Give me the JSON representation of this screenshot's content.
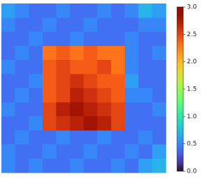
{
  "chart_data": {
    "type": "heatmap",
    "colormap": "turbo",
    "clim": [
      0,
      3
    ],
    "values": [
      [
        0.6,
        0.5,
        0.4,
        0.4,
        0.5,
        0.4,
        0.4,
        0.5,
        0.4,
        0.5,
        0.7,
        0.6
      ],
      [
        0.5,
        0.4,
        0.4,
        0.5,
        0.4,
        0.4,
        0.5,
        0.4,
        0.4,
        0.4,
        0.5,
        0.5
      ],
      [
        0.4,
        0.4,
        0.5,
        0.4,
        0.4,
        0.5,
        0.4,
        0.4,
        0.4,
        0.5,
        0.4,
        0.4
      ],
      [
        0.4,
        0.5,
        0.4,
        2.3,
        2.4,
        2.3,
        2.4,
        2.3,
        2.3,
        0.5,
        0.4,
        0.5
      ],
      [
        0.5,
        0.4,
        0.4,
        2.4,
        2.5,
        2.4,
        2.4,
        2.5,
        2.3,
        0.5,
        0.4,
        0.4
      ],
      [
        0.4,
        0.4,
        0.5,
        2.4,
        2.5,
        2.6,
        2.5,
        2.4,
        2.4,
        0.6,
        0.4,
        0.4
      ],
      [
        0.4,
        0.5,
        0.4,
        2.4,
        2.5,
        2.7,
        2.6,
        2.5,
        2.4,
        0.5,
        0.5,
        0.4
      ],
      [
        0.5,
        0.4,
        0.4,
        2.5,
        2.7,
        2.8,
        2.7,
        2.6,
        2.5,
        0.4,
        0.4,
        0.5
      ],
      [
        0.4,
        0.4,
        0.5,
        2.5,
        2.6,
        2.7,
        2.8,
        2.7,
        2.5,
        0.4,
        0.4,
        0.4
      ],
      [
        0.4,
        0.5,
        0.4,
        0.4,
        0.5,
        0.4,
        0.4,
        0.5,
        0.4,
        0.4,
        0.5,
        0.4
      ],
      [
        0.5,
        0.4,
        0.4,
        0.5,
        0.4,
        0.4,
        0.5,
        0.4,
        0.4,
        0.5,
        0.4,
        0.6
      ],
      [
        0.5,
        0.4,
        0.5,
        0.4,
        0.4,
        0.5,
        0.4,
        0.4,
        0.5,
        0.4,
        0.6,
        0.7
      ]
    ],
    "colorbar_ticks": [
      {
        "value": 0,
        "label": "0.0"
      },
      0.5,
      {
        "value": 1,
        "label": "1.0"
      },
      1.5,
      {
        "value": 2,
        "label": "2.0"
      },
      2.5,
      {
        "value": 3,
        "label": "3.0"
      }
    ]
  }
}
